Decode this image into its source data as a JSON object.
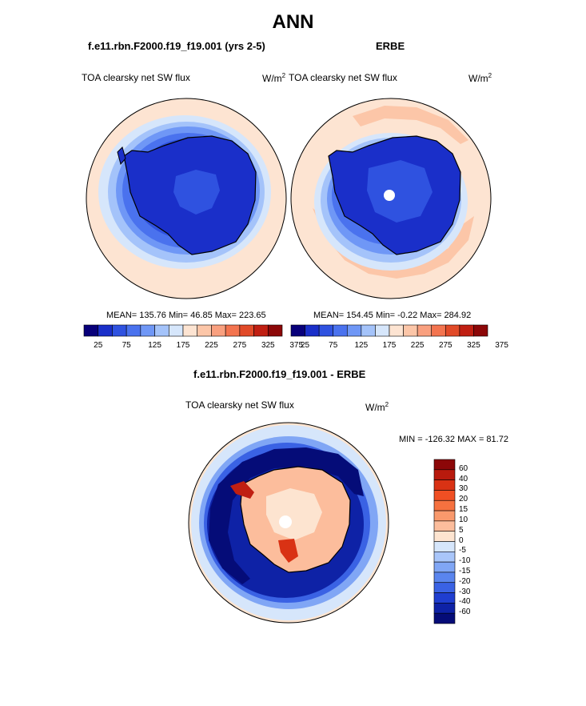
{
  "figure": {
    "title": "ANN",
    "colormap": [
      "#08007a",
      "#1a2fc9",
      "#2f52e0",
      "#4a72ee",
      "#6f97f6",
      "#a4c3fa",
      "#d6e6fb",
      "#fde4d2",
      "#fcc6a8",
      "#f9a07f",
      "#f3744f",
      "#e14a28",
      "#c01f12",
      "#8c0708"
    ]
  },
  "panel_model": {
    "case_title": "f.e11.rbn.F2000.f19_f19.001 (yrs 2-5)",
    "var_label": "TOA clearsky net SW flux",
    "units": "W/m",
    "units_sup": "2",
    "stats": "MEAN= 135.76  Min=  46.85  Max= 223.65"
  },
  "panel_obs": {
    "case_title": "ERBE",
    "var_label": "TOA clearsky net SW flux",
    "units": "W/m",
    "units_sup": "2",
    "stats": "MEAN= 154.45  Min=  -0.22  Max= 284.92"
  },
  "colorbar_top": {
    "ticks": [
      "25",
      "75",
      "125",
      "175",
      "225",
      "275",
      "325",
      "375"
    ],
    "colors": [
      "#08007a",
      "#1a2fc9",
      "#2f52e0",
      "#4a72ee",
      "#6f97f6",
      "#a4c3fa",
      "#d6e6fb",
      "#fde4d2",
      "#fcc6a8",
      "#f9a07f",
      "#f3744f",
      "#e14a28",
      "#c01f12",
      "#8c0708"
    ]
  },
  "panel_diff": {
    "case_title": "f.e11.rbn.F2000.f19_f19.001 - ERBE",
    "var_label": "TOA clearsky net SW flux",
    "units": "W/m",
    "units_sup": "2",
    "minmax": "MIN = -126.32 MAX =  81.72"
  },
  "colorbar_diff": {
    "ticks": [
      "60",
      "40",
      "30",
      "20",
      "15",
      "10",
      "5",
      "0",
      "-5",
      "-10",
      "-15",
      "-20",
      "-30",
      "-40",
      "-60"
    ],
    "colors": [
      "#8c0708",
      "#b81a0d",
      "#d93214",
      "#f04f23",
      "#f6713f",
      "#f9996c",
      "#fcbd9c",
      "#fde4d0",
      "#d6e6fb",
      "#a9c6fa",
      "#80a6f5",
      "#5a85ee",
      "#3a62e4",
      "#1f3ed0",
      "#0e22a6",
      "#050c78"
    ]
  }
}
